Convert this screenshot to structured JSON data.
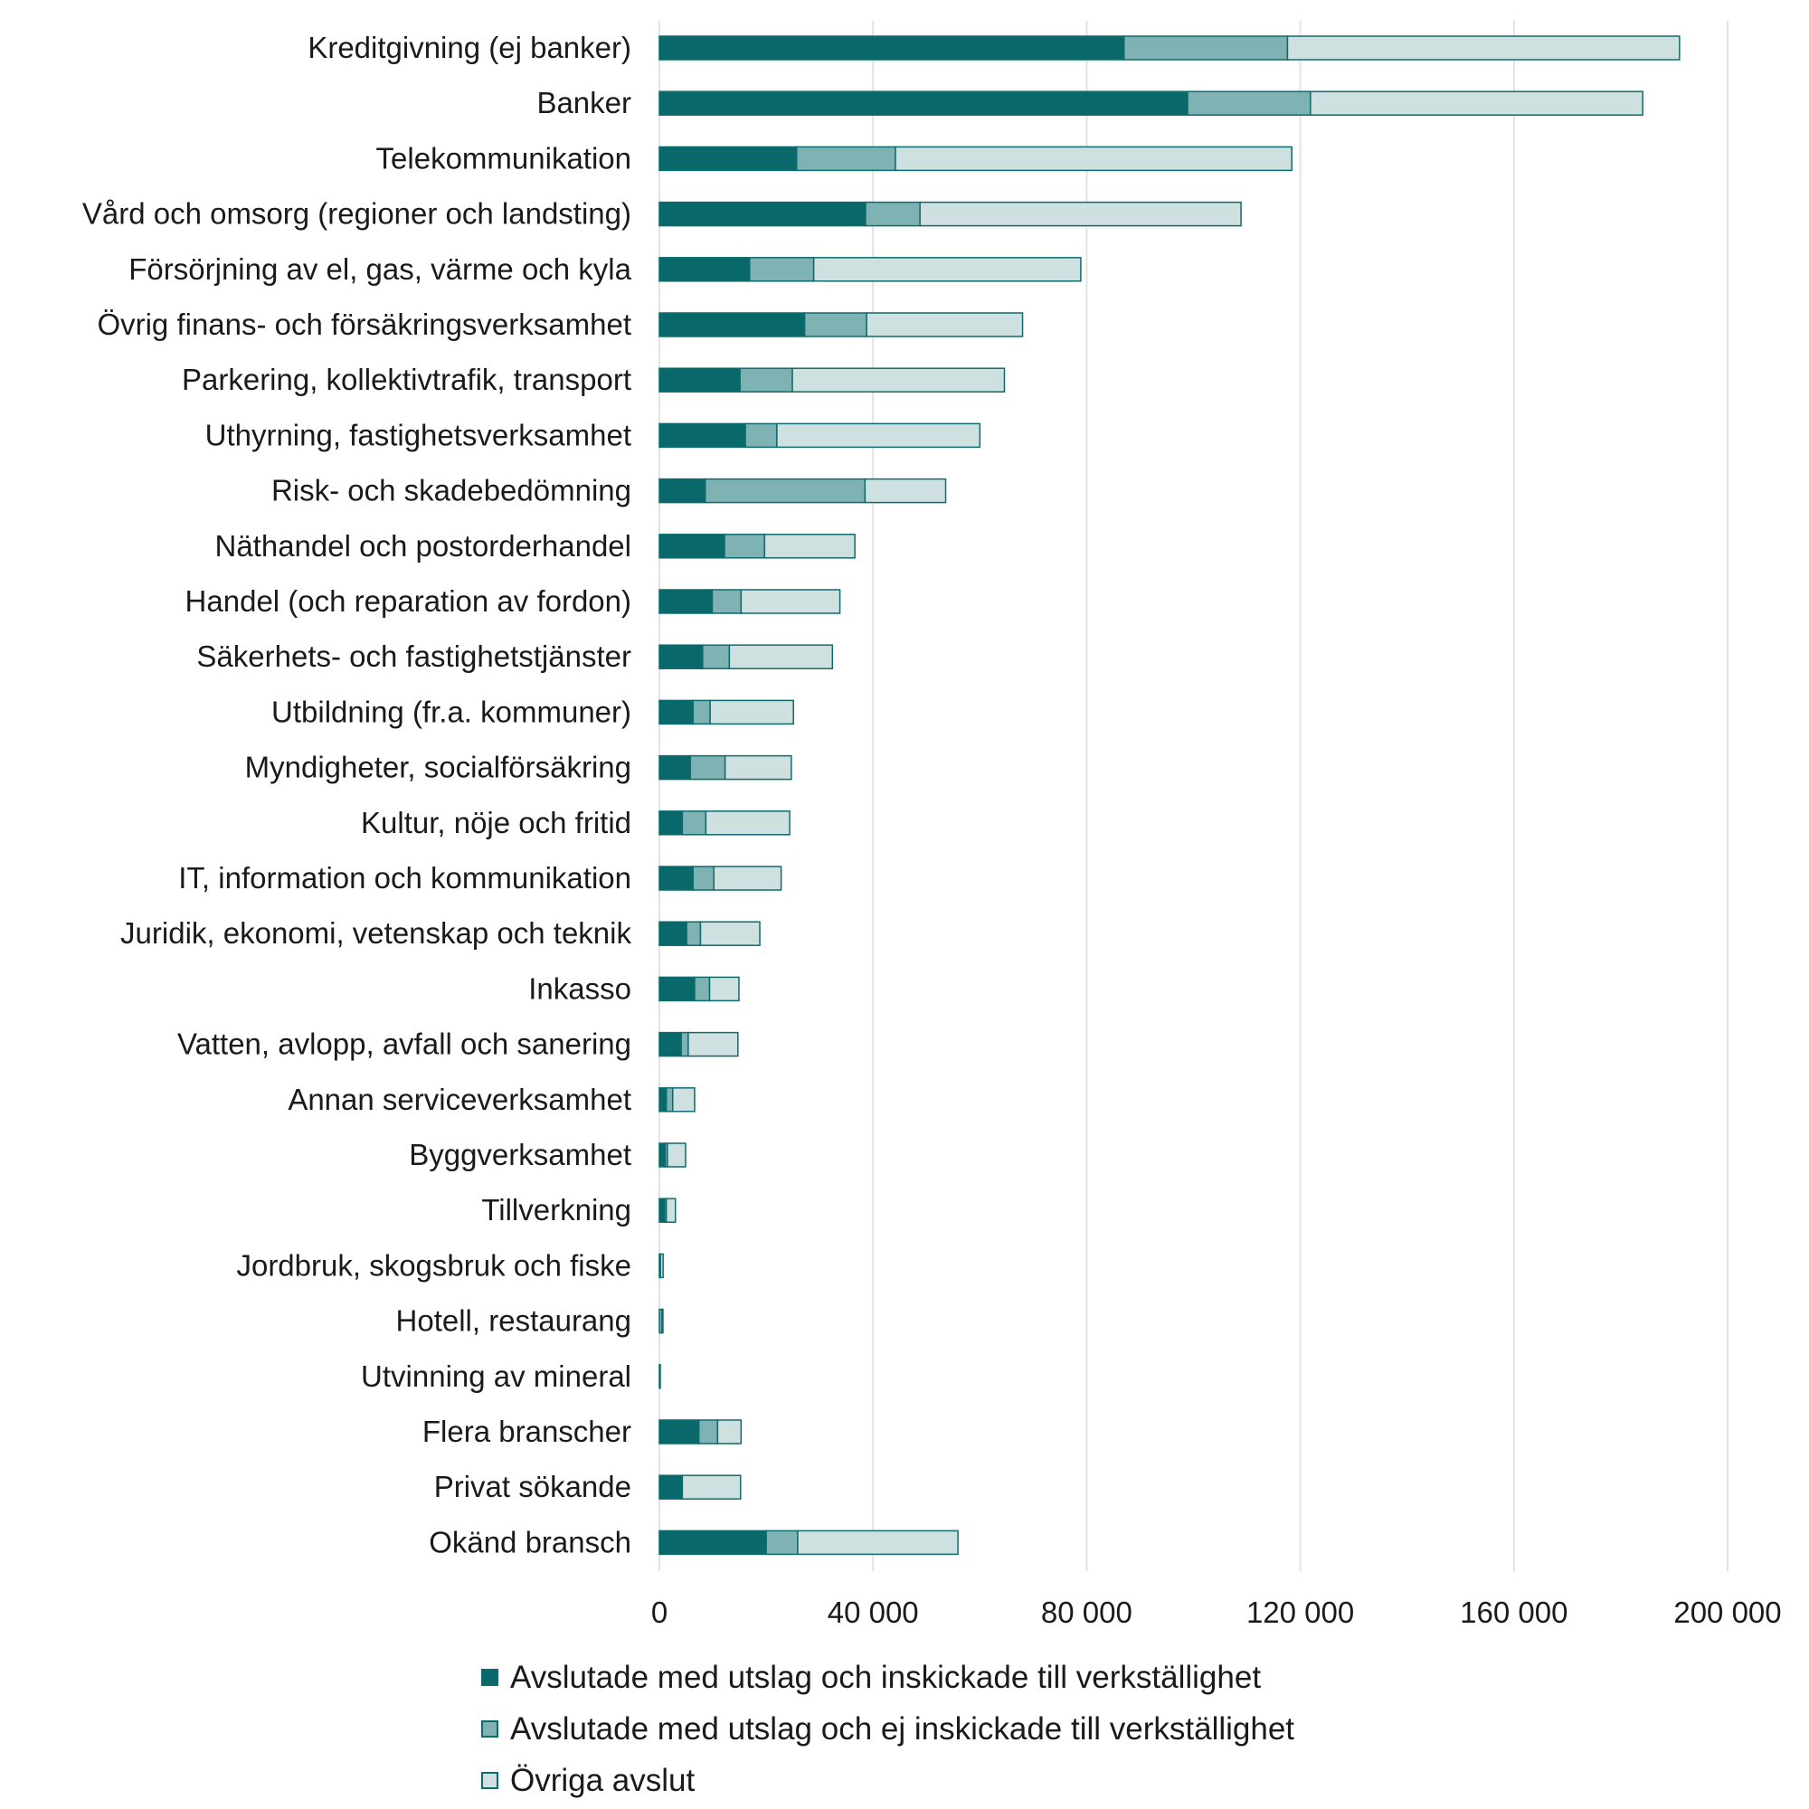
{
  "chart_data": {
    "type": "bar",
    "orientation": "horizontal",
    "stacked": true,
    "title": "",
    "xlabel": "",
    "ylabel": "",
    "xlim": [
      0,
      200000
    ],
    "x_ticks": [
      0,
      40000,
      80000,
      120000,
      160000,
      200000
    ],
    "x_tick_labels": [
      "0",
      "40 000",
      "80 000",
      "120 000",
      "160 000",
      "200 000"
    ],
    "grid": true,
    "legend_position": "bottom",
    "categories": [
      "Kreditgivning (ej banker)",
      "Banker",
      "Telekommunikation",
      "Vård och omsorg (regioner och landsting)",
      "Försörjning av el, gas, värme och kyla",
      "Övrig finans- och försäkringsverksamhet",
      "Parkering, kollektivtrafik, transport",
      "Uthyrning, fastighetsverksamhet",
      "Risk- och skadebedömning",
      "Näthandel och postorderhandel",
      "Handel (och reparation av fordon)",
      "Säkerhets- och fastighetstjänster",
      "Utbildning (fr.a. kommuner)",
      "Myndigheter, socialförsäkring",
      "Kultur, nöje och fritid",
      "IT, information och kommunikation",
      "Juridik, ekonomi, vetenskap och teknik",
      "Inkasso",
      "Vatten, avlopp, avfall och sanering",
      "Annan serviceverksamhet",
      "Byggverksamhet",
      "Tillverkning",
      "Jordbruk, skogsbruk och fiske",
      "Hotell, restaurang",
      "Utvinning av mineral",
      "Flera branscher",
      "Privat sökande",
      "Okänd bransch"
    ],
    "series": [
      {
        "name": "Avslutade med utslag och inskickade till verkställighet",
        "color": "#08686a",
        "values": [
          87000,
          98900,
          25700,
          38600,
          16900,
          27200,
          15100,
          16100,
          8600,
          12200,
          9900,
          8100,
          6300,
          5800,
          4300,
          6300,
          5100,
          6600,
          4100,
          1300,
          1100,
          1000,
          0,
          0,
          0,
          7400,
          4300,
          20000
        ]
      },
      {
        "name": "Avslutade med utslag och ej inskickade till verkställighet",
        "color": "#7fb3b3",
        "values": [
          30600,
          23000,
          18500,
          10200,
          12000,
          11600,
          9800,
          5900,
          29900,
          7500,
          5400,
          5000,
          3200,
          6500,
          4400,
          3900,
          2600,
          2800,
          1300,
          1200,
          400,
          300,
          200,
          500,
          0,
          3500,
          0,
          5900
        ]
      },
      {
        "name": "Övriga avslut",
        "color": "#cfe0e0",
        "values": [
          73400,
          62200,
          74200,
          60100,
          50000,
          29200,
          39700,
          38000,
          15100,
          16900,
          18500,
          19300,
          15600,
          12400,
          15700,
          12600,
          11100,
          5500,
          9300,
          4100,
          3400,
          1700,
          500,
          100,
          100,
          4400,
          10900,
          30000
        ]
      }
    ]
  },
  "legend": {
    "items": [
      {
        "label": "Avslutade med utslag och inskickade till verkställighet",
        "color": "#08686a"
      },
      {
        "label": "Avslutade med utslag och ej inskickade till verkställighet",
        "color": "#7fb3b3"
      },
      {
        "label": "Övriga avslut",
        "color": "#cfe0e0"
      }
    ]
  },
  "colors": {
    "bar_stroke": "#0e6b6d",
    "gridline": "#e3e3e3",
    "text": "#1a1a1a"
  }
}
